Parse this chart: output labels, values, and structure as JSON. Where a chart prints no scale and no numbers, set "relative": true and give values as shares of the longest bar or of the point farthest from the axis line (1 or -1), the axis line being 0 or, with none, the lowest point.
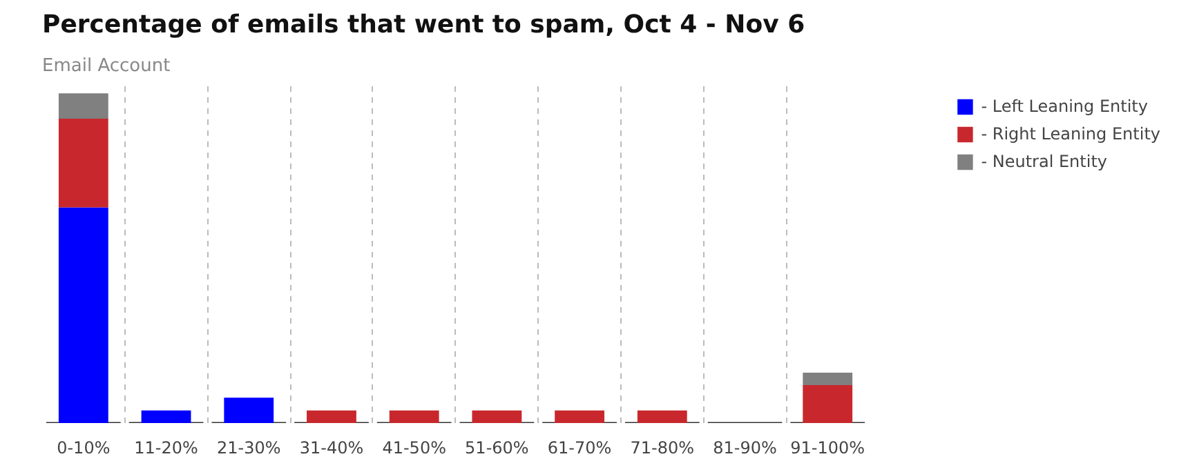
{
  "chart_data": {
    "type": "bar",
    "title": "Percentage of emails that went to spam, Oct 4 - Nov 6",
    "subtitle": "Email Account",
    "categories": [
      "0-10%",
      "11-20%",
      "21-30%",
      "31-40%",
      "41-50%",
      "51-60%",
      "61-70%",
      "71-80%",
      "81-90%",
      "91-100%"
    ],
    "stacked": true,
    "relative": true,
    "grid": "x",
    "legend": "top right",
    "series": [
      {
        "name": "- Left Leaning Entity",
        "color": "#0000ff",
        "values": [
          0.654,
          0.038,
          0.077,
          0,
          0,
          0,
          0,
          0,
          0,
          0
        ]
      },
      {
        "name": "- Right Leaning Entity",
        "color": "#c8282d",
        "values": [
          0.269,
          0,
          0,
          0.038,
          0.038,
          0.038,
          0.038,
          0.038,
          0,
          0.115
        ]
      },
      {
        "name": "- Neutral Entity",
        "color": "#808080",
        "values": [
          0.077,
          0,
          0,
          0,
          0,
          0,
          0,
          0,
          0,
          0.038
        ]
      }
    ]
  }
}
